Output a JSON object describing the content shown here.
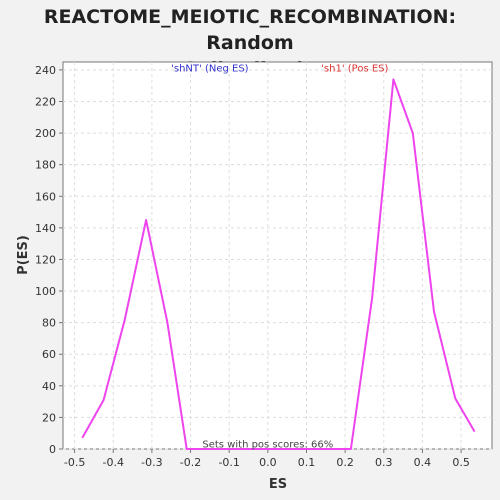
{
  "chart_data": {
    "type": "line",
    "title_line1": "REACTOME_MEIOTIC_RECOMBINATION: Random",
    "title_line2": "ES distribution",
    "xlabel": "ES",
    "ylabel": "P(ES)",
    "xlim": [
      -0.53,
      0.58
    ],
    "ylim": [
      0,
      245
    ],
    "xticks": [
      -0.5,
      -0.4,
      -0.3,
      -0.2,
      -0.1,
      0.0,
      0.1,
      0.2,
      0.3,
      0.4,
      0.5
    ],
    "xtick_labels": [
      "-0.5",
      "-0.4",
      "-0.3",
      "-0.2",
      "-0.1",
      "0.0",
      "0.1",
      "0.2",
      "0.3",
      "0.4",
      "0.5"
    ],
    "yticks": [
      0,
      20,
      40,
      60,
      80,
      100,
      120,
      140,
      160,
      180,
      200,
      220,
      240
    ],
    "ytick_labels": [
      "0",
      "20",
      "40",
      "60",
      "80",
      "100",
      "120",
      "140",
      "160",
      "180",
      "200",
      "220",
      "240"
    ],
    "grid": true,
    "series": [
      {
        "color": "#ee44ee",
        "x": [
          -0.48,
          -0.425,
          -0.37,
          -0.315,
          -0.26,
          -0.21,
          -0.1,
          0.0,
          0.1,
          0.215,
          0.27,
          0.325,
          0.375,
          0.43,
          0.485,
          0.535
        ],
        "y": [
          7,
          31,
          82,
          145,
          80,
          0,
          0,
          0,
          0,
          0,
          96,
          234,
          200,
          87,
          32,
          11
        ]
      }
    ],
    "annotations": [
      {
        "text": "'shNT' (Neg ES)",
        "x": -0.15,
        "y": 239,
        "color": "#3333cc"
      },
      {
        "text": "'sh1' (Pos ES)",
        "x": 0.225,
        "y": 239,
        "color": "#dd3333"
      },
      {
        "text": "Sets with pos scores: 66%",
        "x": 0.0,
        "y": 1,
        "color": "#444444"
      }
    ]
  }
}
